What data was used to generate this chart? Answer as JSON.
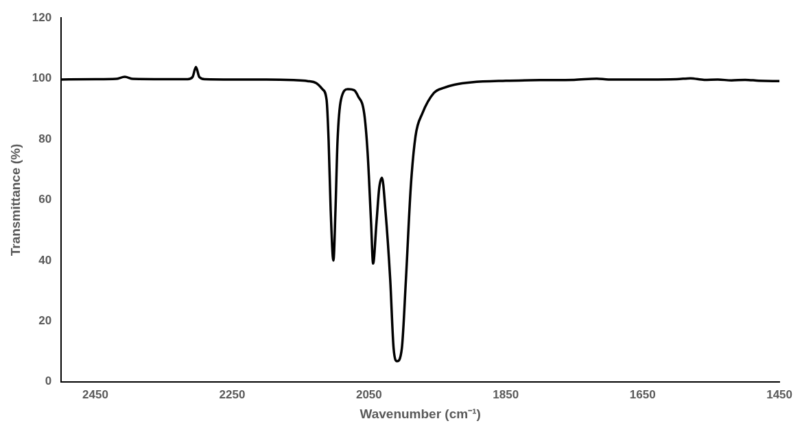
{
  "chart_data": {
    "type": "line",
    "xlabel": "Wavenumber (cm⁻¹)",
    "ylabel": "Transmittance (%)",
    "x": [
      2500,
      2450,
      2420,
      2407,
      2395,
      2350,
      2315,
      2308,
      2303,
      2298,
      2290,
      2250,
      2200,
      2160,
      2140,
      2127,
      2118,
      2112,
      2109,
      2106,
      2102,
      2099,
      2096,
      2091,
      2081,
      2072,
      2066,
      2057,
      2052,
      2047,
      2044,
      2039,
      2035,
      2031,
      2026,
      2019,
      2014,
      2009,
      2002,
      1996,
      1989,
      1982,
      1972,
      1955,
      1940,
      1925,
      1900,
      1850,
      1800,
      1750,
      1717,
      1700,
      1650,
      1600,
      1580,
      1560,
      1540,
      1520,
      1500,
      1480,
      1460,
      1450
    ],
    "series": [
      {
        "color": "#000000",
        "values": [
          99.7,
          99.8,
          99.9,
          100.6,
          99.9,
          99.8,
          99.8,
          100.5,
          103.8,
          100.5,
          99.8,
          99.7,
          99.7,
          99.5,
          99.2,
          98.5,
          96.5,
          93,
          79.4,
          56.6,
          40,
          56.6,
          79.4,
          93,
          96.5,
          96.2,
          94.2,
          88.5,
          75.5,
          52.7,
          39,
          52.7,
          64,
          67.3,
          56.6,
          33.8,
          11,
          6.8,
          11,
          33.8,
          64,
          81,
          88.5,
          95.3,
          97,
          98,
          98.8,
          99.3,
          99.5,
          99.6,
          100,
          99.7,
          99.7,
          99.8,
          100.1,
          99.6,
          99.7,
          99.4,
          99.6,
          99.3,
          99.2,
          99.2
        ]
      }
    ],
    "xlim": [
      2500,
      1450
    ],
    "xticks": [
      2450,
      2250,
      2050,
      1850,
      1650,
      1450
    ],
    "ylim": [
      0,
      120
    ],
    "yticks": [
      0,
      20,
      40,
      60,
      80,
      100,
      120
    ],
    "grid": false,
    "legend": false,
    "marker": "none",
    "line_style": "solid"
  }
}
